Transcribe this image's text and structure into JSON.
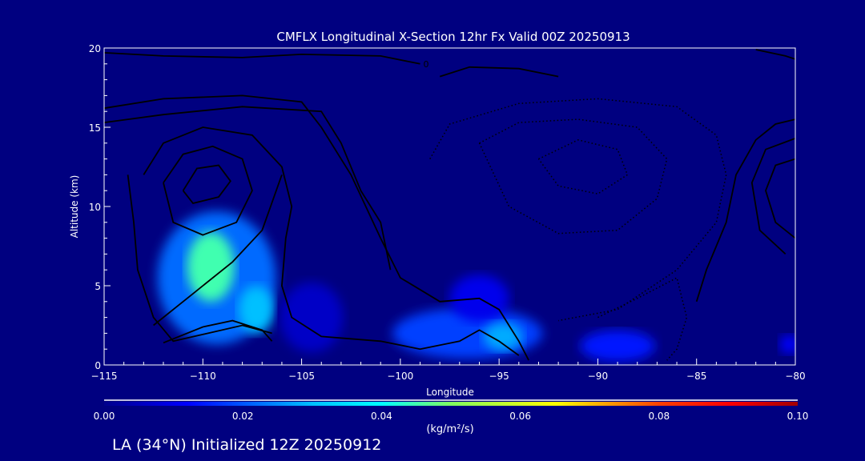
{
  "chart_data": {
    "type": "heatmap",
    "title": "CMFLX Longitudinal X-Section 12hr  Fx Valid 00Z 20250913",
    "xlabel": "Longitude",
    "ylabel": "Altitude (km)",
    "xlim": [
      -115,
      -80
    ],
    "ylim": [
      0,
      20
    ],
    "xticks": [
      -115,
      -110,
      -105,
      -100,
      -95,
      -90,
      -85,
      -80
    ],
    "xtick_labels": [
      "−115",
      "−110",
      "−105",
      "−100",
      "−95",
      "−90",
      "−85",
      "−80"
    ],
    "yticks": [
      0,
      5,
      10,
      15,
      20
    ],
    "ytick_labels": [
      "0",
      "5",
      "10",
      "15",
      "20"
    ],
    "colorbar": {
      "range": [
        0,
        0.1
      ],
      "ticks": [
        "0.00",
        "0.02",
        "0.04",
        "0.06",
        "0.08",
        "0.10"
      ],
      "units": "(kg/m²/s)",
      "stops": [
        [
          0,
          "#00008c"
        ],
        [
          0.012,
          "#0000ff"
        ],
        [
          0.03,
          "#00c0ff"
        ],
        [
          0.04,
          "#00ffff"
        ],
        [
          0.05,
          "#80ff60"
        ],
        [
          0.065,
          "#ffff00"
        ],
        [
          0.08,
          "#ff4000"
        ],
        [
          0.09,
          "#ff0000"
        ],
        [
          0.1,
          "#a00000"
        ]
      ]
    },
    "flux_regions": [
      {
        "lon": -109.3,
        "alt": 5.5,
        "rlon": 3.0,
        "ralt": 4.2,
        "value": 0.022
      },
      {
        "lon": -109.6,
        "alt": 6.2,
        "rlon": 1.2,
        "ralt": 2.2,
        "value": 0.045
      },
      {
        "lon": -107.3,
        "alt": 3.5,
        "rlon": 0.9,
        "ralt": 1.5,
        "value": 0.03
      },
      {
        "lon": -104.5,
        "alt": 3.0,
        "rlon": 1.6,
        "ralt": 2.2,
        "value": 0.006
      },
      {
        "lon": -96.6,
        "alt": 2.0,
        "rlon": 3.8,
        "ralt": 1.6,
        "value": 0.018
      },
      {
        "lon": -96.0,
        "alt": 4.2,
        "rlon": 1.5,
        "ralt": 1.5,
        "value": 0.01
      },
      {
        "lon": -94.8,
        "alt": 1.8,
        "rlon": 1.0,
        "ralt": 0.9,
        "value": 0.028
      },
      {
        "lon": -89.0,
        "alt": 1.2,
        "rlon": 1.9,
        "ralt": 1.0,
        "value": 0.014
      },
      {
        "lon": -80.3,
        "alt": 1.3,
        "rlon": 0.5,
        "ralt": 0.6,
        "value": 0.012
      }
    ],
    "contours": [
      {
        "style": "solid",
        "label": "0",
        "points": [
          [
            -115,
            19.7
          ],
          [
            -112,
            19.5
          ],
          [
            -108,
            19.4
          ],
          [
            -105,
            19.6
          ],
          [
            -101,
            19.5
          ],
          [
            -99,
            19.0
          ]
        ]
      },
      {
        "style": "solid",
        "label": "",
        "points": [
          [
            -115,
            15.3
          ],
          [
            -112,
            15.8
          ],
          [
            -108,
            16.3
          ],
          [
            -104,
            16.0
          ],
          [
            -103,
            14
          ],
          [
            -102,
            11
          ],
          [
            -101,
            9
          ],
          [
            -100.5,
            6
          ]
        ]
      },
      {
        "style": "solid",
        "label": "",
        "points": [
          [
            -115,
            16.2
          ],
          [
            -112,
            16.8
          ],
          [
            -108,
            17.0
          ],
          [
            -105,
            16.6
          ],
          [
            -104,
            15
          ],
          [
            -102.5,
            12
          ],
          [
            -101,
            8
          ],
          [
            -100,
            5.5
          ],
          [
            -98,
            4.0
          ],
          [
            -96,
            4.2
          ],
          [
            -95,
            3.5
          ],
          [
            -94,
            1.5
          ],
          [
            -93.5,
            0.3
          ]
        ]
      },
      {
        "style": "solid",
        "label": "",
        "points": [
          [
            -113,
            12
          ],
          [
            -112,
            14
          ],
          [
            -110,
            15
          ],
          [
            -107.5,
            14.5
          ],
          [
            -106,
            12.5
          ],
          [
            -105.5,
            10
          ],
          [
            -105.8,
            8
          ],
          [
            -106,
            5
          ],
          [
            -105.5,
            3
          ],
          [
            -104,
            1.8
          ],
          [
            -101,
            1.5
          ],
          [
            -99,
            1.0
          ],
          [
            -97,
            1.5
          ],
          [
            -96,
            2.2
          ],
          [
            -95,
            1.5
          ],
          [
            -94,
            0.6
          ]
        ]
      },
      {
        "style": "solid",
        "label": "",
        "points": [
          [
            -112,
            11.5
          ],
          [
            -111,
            13.3
          ],
          [
            -109.5,
            13.8
          ],
          [
            -108,
            13
          ],
          [
            -107.5,
            11
          ],
          [
            -108.3,
            9
          ],
          [
            -110,
            8.2
          ],
          [
            -111.5,
            9
          ],
          [
            -112,
            11.5
          ]
        ]
      },
      {
        "style": "solid",
        "label": "",
        "points": [
          [
            -111,
            11
          ],
          [
            -110.3,
            12.4
          ],
          [
            -109.2,
            12.6
          ],
          [
            -108.6,
            11.6
          ],
          [
            -109.2,
            10.6
          ],
          [
            -110.5,
            10.2
          ],
          [
            -111,
            11
          ]
        ]
      },
      {
        "style": "solid",
        "label": "",
        "points": [
          [
            -113.8,
            12
          ],
          [
            -113.5,
            9
          ],
          [
            -113.3,
            6
          ],
          [
            -112.5,
            3
          ],
          [
            -111.5,
            1.5
          ],
          [
            -108,
            2.5
          ],
          [
            -106.5,
            2.0
          ]
        ]
      },
      {
        "style": "solid",
        "label": "",
        "points": [
          [
            -112,
            1.4
          ],
          [
            -110,
            2.4
          ],
          [
            -108.5,
            2.8
          ],
          [
            -107,
            2.2
          ],
          [
            -106.5,
            1.5
          ]
        ]
      },
      {
        "style": "solid",
        "label": "",
        "points": [
          [
            -112.5,
            2.5
          ],
          [
            -110.5,
            4.5
          ],
          [
            -108.5,
            6.5
          ],
          [
            -107,
            8.5
          ],
          [
            -106,
            12
          ]
        ]
      },
      {
        "style": "solid",
        "label": "",
        "points": [
          [
            -98,
            18.2
          ],
          [
            -96.5,
            18.8
          ],
          [
            -94,
            18.7
          ],
          [
            -92,
            18.2
          ]
        ]
      },
      {
        "style": "solid",
        "label": "",
        "points": [
          [
            -82,
            19.9
          ],
          [
            -80.5,
            19.5
          ],
          [
            -80,
            19.3
          ]
        ]
      },
      {
        "style": "solid",
        "label": "",
        "points": [
          [
            -80,
            15.5
          ],
          [
            -81,
            15.2
          ],
          [
            -82,
            14.2
          ],
          [
            -83,
            12
          ],
          [
            -83.5,
            9
          ],
          [
            -84.5,
            6
          ],
          [
            -85,
            4
          ]
        ]
      },
      {
        "style": "solid",
        "label": "",
        "points": [
          [
            -80,
            13
          ],
          [
            -81,
            12.6
          ],
          [
            -81.5,
            11
          ],
          [
            -81,
            9
          ],
          [
            -80,
            8
          ]
        ]
      },
      {
        "style": "solid",
        "label": "",
        "points": [
          [
            -80,
            14.3
          ],
          [
            -81.5,
            13.6
          ],
          [
            -82.2,
            11.5
          ],
          [
            -81.8,
            8.5
          ],
          [
            -80.5,
            7
          ]
        ]
      },
      {
        "style": "dotted",
        "label": "",
        "points": [
          [
            -98.5,
            13
          ],
          [
            -97.5,
            15.2
          ],
          [
            -94,
            16.5
          ],
          [
            -90,
            16.8
          ],
          [
            -86,
            16.3
          ],
          [
            -84,
            14.5
          ],
          [
            -83.5,
            12
          ],
          [
            -84,
            9
          ],
          [
            -86,
            6
          ],
          [
            -89,
            3.5
          ],
          [
            -92,
            2.8
          ]
        ]
      },
      {
        "style": "dotted",
        "label": "",
        "points": [
          [
            -96,
            14
          ],
          [
            -94,
            15.3
          ],
          [
            -91,
            15.5
          ],
          [
            -88,
            15
          ],
          [
            -86.5,
            13
          ],
          [
            -87,
            10.5
          ],
          [
            -89,
            8.5
          ],
          [
            -92,
            8.3
          ],
          [
            -94.5,
            10
          ],
          [
            -96,
            14
          ]
        ]
      },
      {
        "style": "dotted",
        "label": "",
        "points": [
          [
            -93,
            13
          ],
          [
            -91,
            14.2
          ],
          [
            -89,
            13.6
          ],
          [
            -88.5,
            12
          ],
          [
            -90,
            10.8
          ],
          [
            -92,
            11.3
          ],
          [
            -93,
            13
          ]
        ]
      },
      {
        "style": "dotted",
        "label": "",
        "points": [
          [
            -90,
            3
          ],
          [
            -88,
            4.2
          ],
          [
            -86,
            5.5
          ],
          [
            -85.5,
            3
          ],
          [
            -86,
            1
          ],
          [
            -86.5,
            0.3
          ]
        ]
      }
    ]
  },
  "footer": {
    "location_line": "LA (34°N) Initialized 12Z 20250912"
  }
}
